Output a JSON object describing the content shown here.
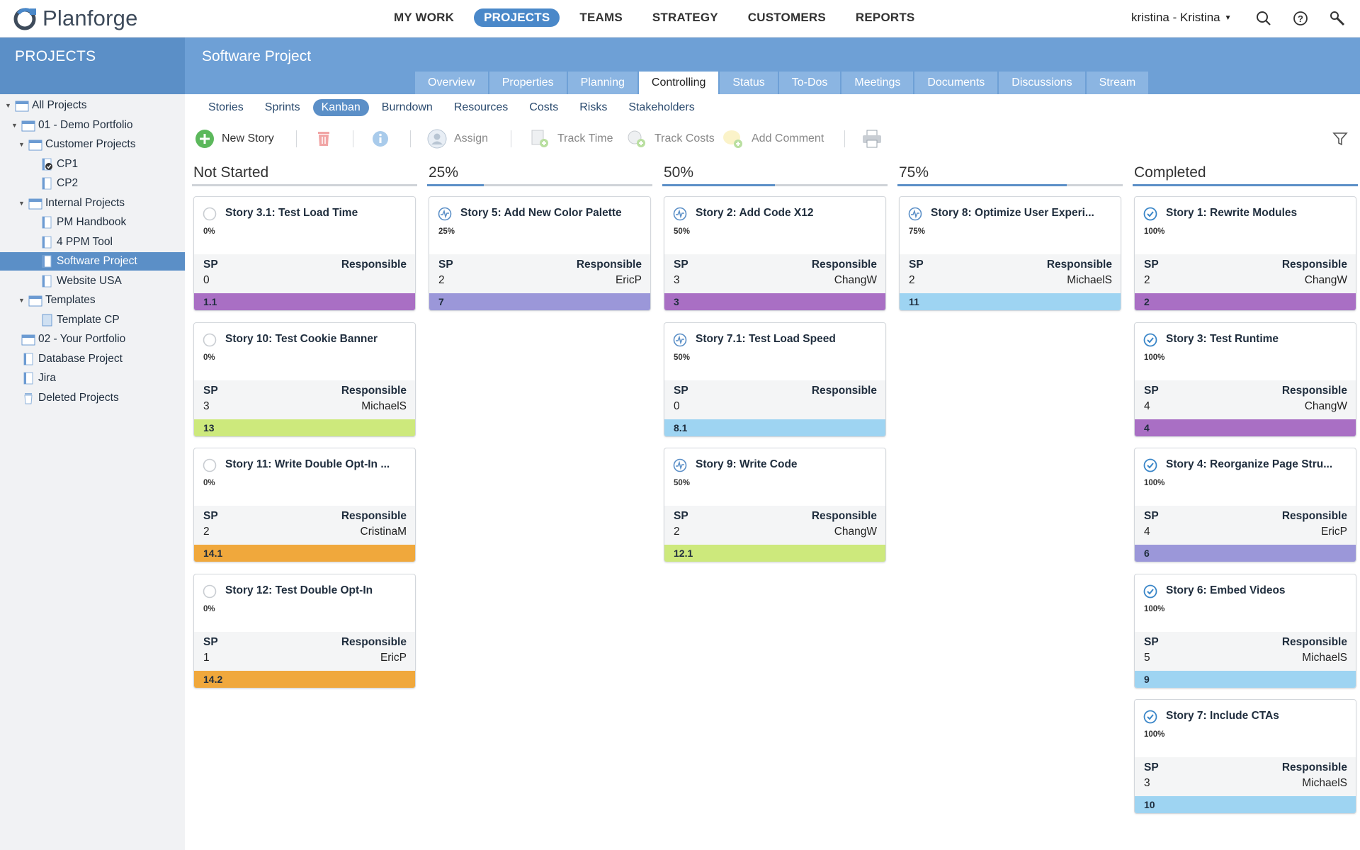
{
  "app": {
    "logo_text": "Planforge"
  },
  "nav": {
    "items": [
      "MY WORK",
      "PROJECTS",
      "TEAMS",
      "STRATEGY",
      "CUSTOMERS",
      "REPORTS"
    ],
    "active": "PROJECTS",
    "user": "kristina - Kristina"
  },
  "sidebar": {
    "title": "PROJECTS",
    "tree": [
      {
        "label": "All Projects",
        "level": 0,
        "expanded": true,
        "icon": "portfolio-icon"
      },
      {
        "label": "01 - Demo Portfolio",
        "level": 1,
        "expanded": true,
        "icon": "portfolio-icon"
      },
      {
        "label": "Customer Projects",
        "level": 2,
        "expanded": true,
        "icon": "portfolio-icon"
      },
      {
        "label": "CP1",
        "level": 3,
        "icon": "project-done-icon"
      },
      {
        "label": "CP2",
        "level": 3,
        "icon": "project-icon"
      },
      {
        "label": "Internal Projects",
        "level": 2,
        "expanded": true,
        "icon": "portfolio-icon"
      },
      {
        "label": "PM Handbook",
        "level": 3,
        "icon": "project-icon"
      },
      {
        "label": "4 PPM Tool",
        "level": 3,
        "icon": "project-icon"
      },
      {
        "label": "Software Project",
        "level": 3,
        "icon": "project-icon",
        "selected": true
      },
      {
        "label": "Website USA",
        "level": 3,
        "icon": "project-icon"
      },
      {
        "label": "Templates",
        "level": 2,
        "expanded": true,
        "icon": "portfolio-icon"
      },
      {
        "label": "Template CP",
        "level": 3,
        "icon": "template-icon"
      },
      {
        "label": "02 - Your Portfolio",
        "level": 1,
        "icon": "portfolio-icon"
      },
      {
        "label": "Database Project",
        "level": 1,
        "icon": "project-icon"
      },
      {
        "label": "Jira",
        "level": 1,
        "icon": "project-icon"
      },
      {
        "label": "Deleted Projects",
        "level": 1,
        "icon": "trash-icon"
      }
    ]
  },
  "project": {
    "title": "Software Project",
    "tabs": [
      "Overview",
      "Properties",
      "Planning",
      "Controlling",
      "Status",
      "To-Dos",
      "Meetings",
      "Documents",
      "Discussions",
      "Stream"
    ],
    "active_tab": "Controlling",
    "subtabs": [
      "Stories",
      "Sprints",
      "Kanban",
      "Burndown",
      "Resources",
      "Costs",
      "Risks",
      "Stakeholders"
    ],
    "active_subtab": "Kanban"
  },
  "toolbar": {
    "new_story": "New Story",
    "assign": "Assign",
    "track_time": "Track Time",
    "track_costs": "Track Costs",
    "add_comment": "Add Comment"
  },
  "colors": {
    "accent": "#5b8fc7",
    "purple": "#a96fc4",
    "lavender": "#9b97d9",
    "skyblue": "#9ed4f2",
    "lime": "#cde97c",
    "orange": "#f0a83c"
  },
  "columns": [
    {
      "title": "Not Started",
      "progress": 0,
      "cards": [
        {
          "title": "Story 3.1: Test Load Time",
          "pct": "0%",
          "sp_label": "SP",
          "sp": "0",
          "resp_label": "Responsible",
          "resp": "",
          "id": "1.1",
          "color": "purple",
          "status": "open"
        },
        {
          "title": "Story 10: Test Cookie Banner",
          "pct": "0%",
          "sp_label": "SP",
          "sp": "3",
          "resp_label": "Responsible",
          "resp": "MichaelS",
          "id": "13",
          "color": "lime",
          "status": "open"
        },
        {
          "title": "Story 11: Write Double Opt-In ...",
          "pct": "0%",
          "sp_label": "SP",
          "sp": "2",
          "resp_label": "Responsible",
          "resp": "CristinaM",
          "id": "14.1",
          "color": "orange",
          "status": "open"
        },
        {
          "title": "Story 12: Test Double Opt-In",
          "pct": "0%",
          "sp_label": "SP",
          "sp": "1",
          "resp_label": "Responsible",
          "resp": "EricP",
          "id": "14.2",
          "color": "orange",
          "status": "open"
        }
      ]
    },
    {
      "title": "25%",
      "progress": 0.25,
      "cards": [
        {
          "title": "Story 5: Add New Color Palette",
          "pct": "25%",
          "sp_label": "SP",
          "sp": "2",
          "resp_label": "Responsible",
          "resp": "EricP",
          "id": "7",
          "color": "lavender",
          "status": "progress"
        }
      ]
    },
    {
      "title": "50%",
      "progress": 0.5,
      "cards": [
        {
          "title": "Story 2: Add Code X12",
          "pct": "50%",
          "sp_label": "SP",
          "sp": "3",
          "resp_label": "Responsible",
          "resp": "ChangW",
          "id": "3",
          "color": "purple",
          "status": "progress"
        },
        {
          "title": "Story 7.1: Test Load Speed",
          "pct": "50%",
          "sp_label": "SP",
          "sp": "0",
          "resp_label": "Responsible",
          "resp": "",
          "id": "8.1",
          "color": "skyblue",
          "status": "progress"
        },
        {
          "title": "Story 9: Write Code",
          "pct": "50%",
          "sp_label": "SP",
          "sp": "2",
          "resp_label": "Responsible",
          "resp": "ChangW",
          "id": "12.1",
          "color": "lime",
          "status": "progress"
        }
      ]
    },
    {
      "title": "75%",
      "progress": 0.75,
      "cards": [
        {
          "title": "Story 8: Optimize User Experi...",
          "pct": "75%",
          "sp_label": "SP",
          "sp": "2",
          "resp_label": "Responsible",
          "resp": "MichaelS",
          "id": "11",
          "color": "skyblue",
          "status": "progress"
        }
      ]
    },
    {
      "title": "Completed",
      "progress": 1,
      "cards": [
        {
          "title": "Story 1: Rewrite Modules",
          "pct": "100%",
          "sp_label": "SP",
          "sp": "2",
          "resp_label": "Responsible",
          "resp": "ChangW",
          "id": "2",
          "color": "purple",
          "status": "done"
        },
        {
          "title": "Story 3: Test Runtime",
          "pct": "100%",
          "sp_label": "SP",
          "sp": "4",
          "resp_label": "Responsible",
          "resp": "ChangW",
          "id": "4",
          "color": "purple",
          "status": "done"
        },
        {
          "title": "Story 4: Reorganize Page Stru...",
          "pct": "100%",
          "sp_label": "SP",
          "sp": "4",
          "resp_label": "Responsible",
          "resp": "EricP",
          "id": "6",
          "color": "lavender",
          "status": "done"
        },
        {
          "title": "Story 6: Embed Videos",
          "pct": "100%",
          "sp_label": "SP",
          "sp": "5",
          "resp_label": "Responsible",
          "resp": "MichaelS",
          "id": "9",
          "color": "skyblue",
          "status": "done"
        },
        {
          "title": "Story 7: Include CTAs",
          "pct": "100%",
          "sp_label": "SP",
          "sp": "3",
          "resp_label": "Responsible",
          "resp": "MichaelS",
          "id": "10",
          "color": "skyblue",
          "status": "done"
        }
      ]
    }
  ]
}
